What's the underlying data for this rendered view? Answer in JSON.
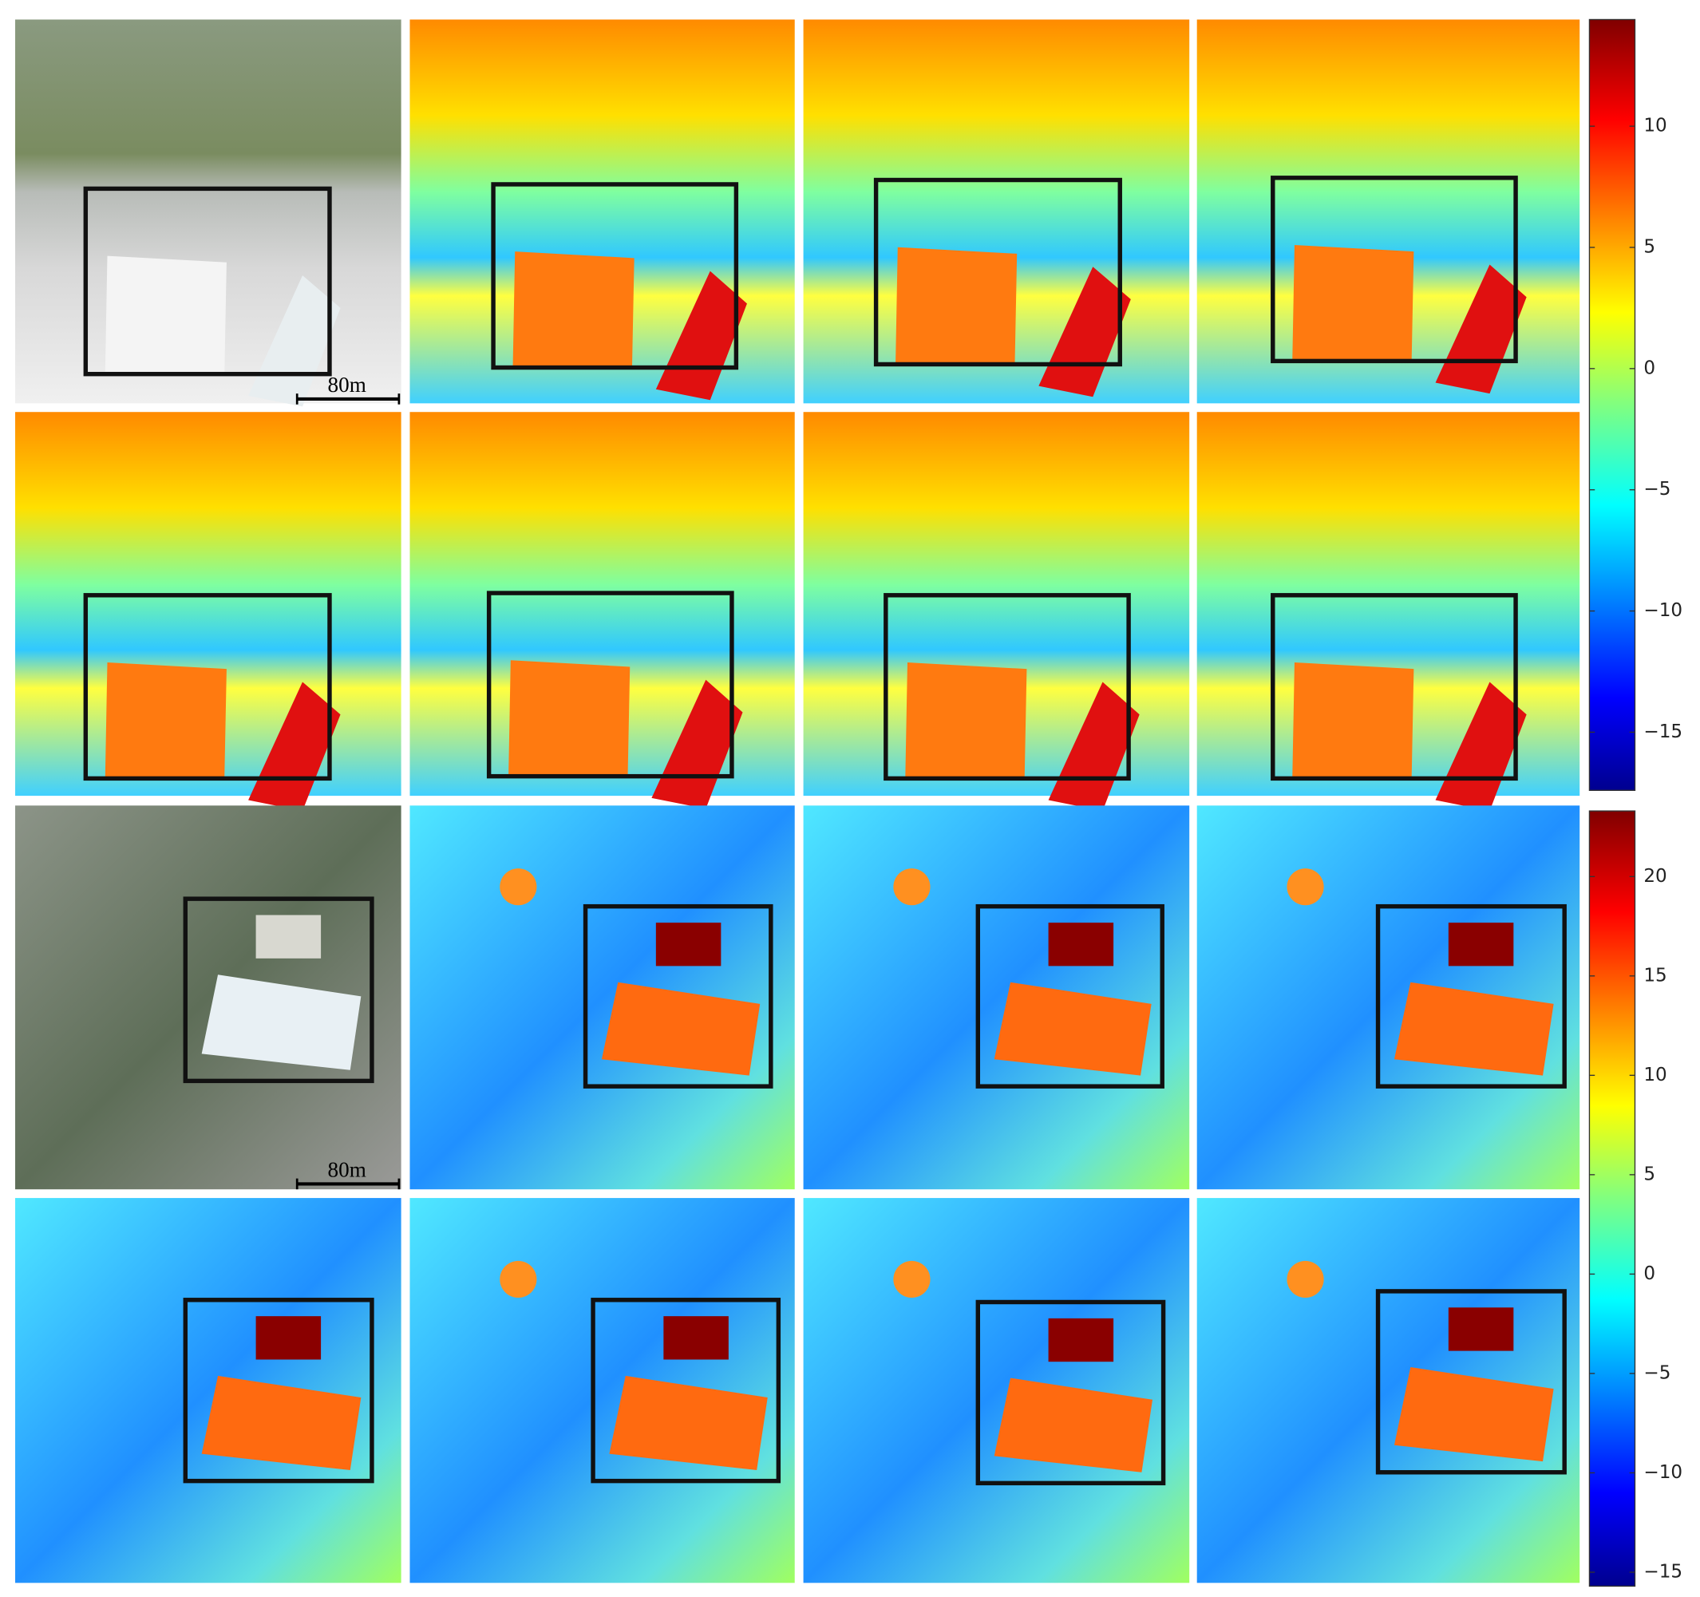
{
  "colorbars": [
    {
      "lim": [
        -17.4,
        14.4
      ],
      "ticks": [
        {
          "value": -15,
          "label": "−15"
        },
        {
          "value": -10,
          "label": "−10"
        },
        {
          "value": -5,
          "label": "−5"
        },
        0,
        5,
        10
      ]
    },
    {
      "lim": [
        -15.7,
        23.3
      ],
      "ticks": [
        {
          "value": -15,
          "label": "−15"
        },
        {
          "value": -10,
          "label": "−10"
        },
        {
          "value": -5,
          "label": "−5"
        },
        0,
        5,
        10,
        15,
        20
      ]
    }
  ],
  "scale_labels": [
    "80m",
    "80m"
  ]
}
